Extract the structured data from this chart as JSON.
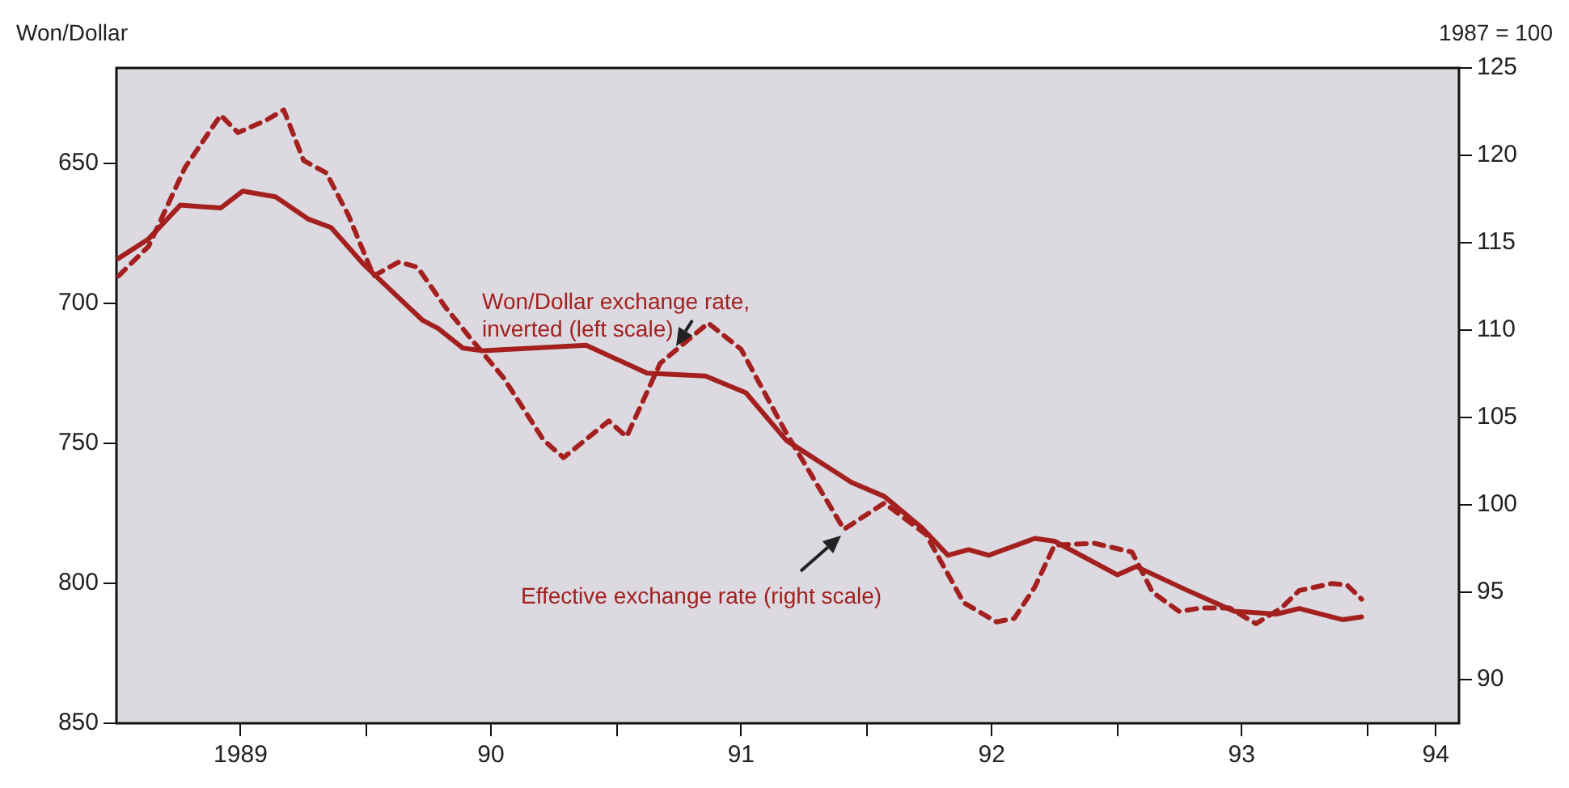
{
  "chart_data": {
    "type": "line",
    "ylabel": "Won/Dollar",
    "y2label": "1987 = 100",
    "xlim": [
      "1989-01-01",
      "1994-05-14"
    ],
    "xticks": [
      {
        "value": "1989-07-01",
        "label": "1989"
      },
      {
        "value": "1990-01-01",
        "label": null
      },
      {
        "value": "1990-07-01",
        "label": "90"
      },
      {
        "value": "1991-01-01",
        "label": null
      },
      {
        "value": "1991-07-01",
        "label": "91"
      },
      {
        "value": "1992-01-01",
        "label": null
      },
      {
        "value": "1992-07-01",
        "label": "92"
      },
      {
        "value": "1993-01-01",
        "label": null
      },
      {
        "value": "1993-07-01",
        "label": "93"
      },
      {
        "value": "1994-01-01",
        "label": null
      },
      {
        "value": "1994-04-10",
        "label": "94"
      }
    ],
    "ylim": [
      850,
      616
    ],
    "yticks": [
      650,
      700,
      750,
      800,
      850
    ],
    "y2lim": [
      87.5,
      125
    ],
    "y2ticks": [
      90,
      95,
      100,
      105,
      110,
      115,
      120,
      125
    ],
    "grid": false,
    "legend": false,
    "marker": "none",
    "series": [
      {
        "name": "Won/Dollar exchange rate, inverted (left scale)",
        "color": "#a3201e",
        "line_style": "solid",
        "x": [
          "1989-01-04",
          "1989-02-17",
          "1989-04-04",
          "1989-06-02",
          "1989-07-04",
          "1989-08-21",
          "1989-10-08",
          "1989-11-10",
          "1989-12-27",
          "1990-03-23",
          "1990-04-15",
          "1990-05-21",
          "1990-06-20",
          "1990-11-17",
          "1991-02-14",
          "1991-05-10",
          "1991-07-08",
          "1991-09-05",
          "1991-12-09",
          "1992-01-26",
          "1992-03-20",
          "1992-04-28",
          "1992-05-28",
          "1992-06-27",
          "1992-09-02",
          "1992-10-01",
          "1993-01-01",
          "1993-01-28",
          "1993-04-08",
          "1993-06-20",
          "1993-08-21",
          "1993-09-23",
          "1993-11-25",
          "1993-12-23"
        ],
        "values": [
          684,
          677,
          665,
          666,
          660,
          662,
          670,
          673,
          686,
          706,
          709,
          716,
          717,
          715,
          725,
          726,
          732,
          749,
          764,
          769,
          780,
          790,
          788,
          790,
          784,
          785,
          797,
          794,
          802,
          810,
          811,
          809,
          813,
          812
        ]
      },
      {
        "name": "Effective exchange rate (right scale)",
        "color": "#a3201e",
        "line_style": "dashed",
        "axis": "y2",
        "x": [
          "1989-01-04",
          "1989-02-17",
          "1989-04-11",
          "1989-06-02",
          "1989-06-27",
          "1989-08-07",
          "1989-09-02",
          "1989-10-01",
          "1989-11-03",
          "1989-12-05",
          "1990-01-11",
          "1990-02-17",
          "1990-03-16",
          "1990-04-26",
          "1990-06-02",
          "1990-07-19",
          "1990-09-16",
          "1990-10-15",
          "1990-12-20",
          "1991-01-15",
          "1991-03-05",
          "1991-05-14",
          "1991-07-01",
          "1991-09-05",
          "1991-11-28",
          "1992-01-26",
          "1992-03-27",
          "1992-05-21",
          "1992-07-08",
          "1992-08-03",
          "1992-09-02",
          "1992-10-01",
          "1992-11-28",
          "1993-01-22",
          "1993-02-21",
          "1993-04-01",
          "1993-05-03",
          "1993-06-13",
          "1993-07-22",
          "1993-08-28",
          "1993-09-23",
          "1993-11-10",
          "1993-12-02",
          "1993-12-23"
        ],
        "values": [
          113.1,
          114.8,
          119.3,
          122.3,
          121.3,
          122.0,
          122.6,
          119.7,
          119.0,
          116.6,
          113.1,
          113.9,
          113.6,
          111.3,
          109.5,
          107.3,
          103.7,
          102.7,
          104.8,
          103.9,
          108.1,
          110.4,
          108.9,
          104.1,
          98.6,
          100.1,
          98.3,
          94.4,
          93.3,
          93.5,
          95.3,
          97.7,
          97.8,
          97.3,
          95.0,
          93.9,
          94.1,
          94.1,
          93.2,
          94.1,
          95.1,
          95.5,
          95.4,
          94.6
        ]
      }
    ]
  }
}
